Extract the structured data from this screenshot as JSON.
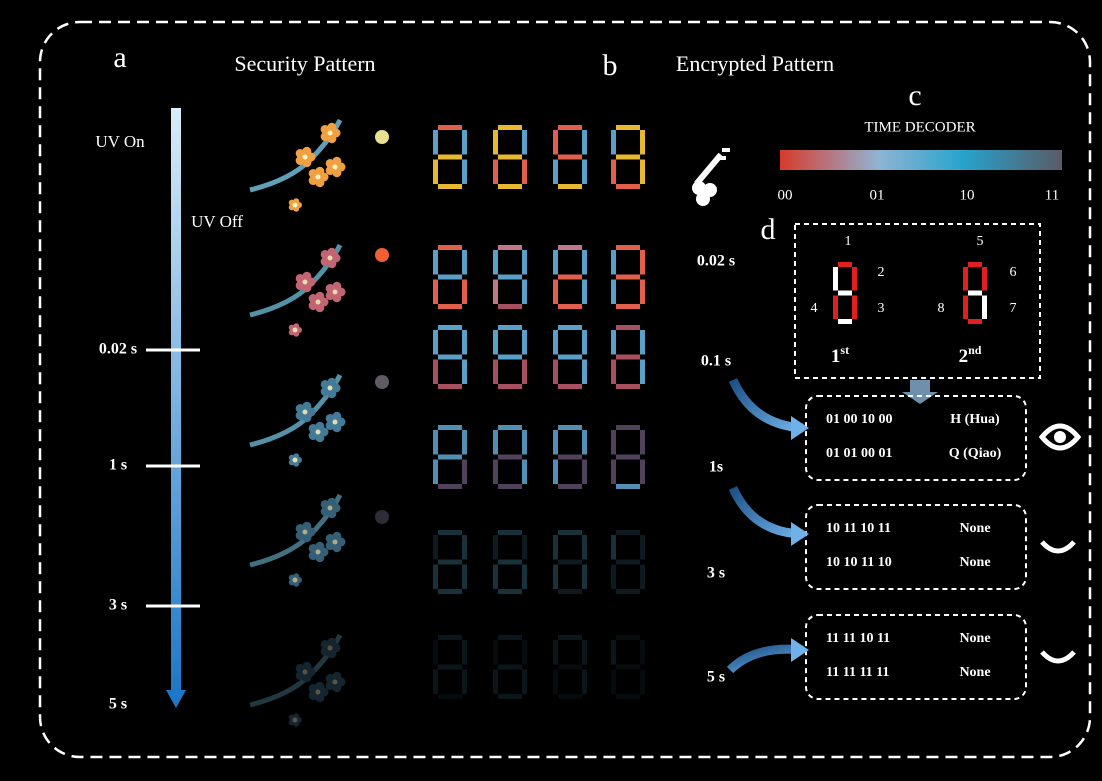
{
  "panels": {
    "a": "a",
    "b": "b",
    "c": "c",
    "d": "d"
  },
  "security_pattern": {
    "title": "Security Pattern",
    "uv_on": "UV On",
    "uv_off": "UV Off",
    "times": [
      "0.02 s",
      "1 s",
      "3 s",
      "5 s"
    ]
  },
  "encrypted_pattern": {
    "title": "Encrypted Pattern",
    "times": [
      "0.02 s",
      "0.1 s",
      "1s",
      "3 s",
      "5 s"
    ]
  },
  "time_decoder": {
    "title": "TIME DECODER",
    "labels": [
      "00",
      "01",
      "10",
      "11"
    ]
  },
  "decoder_key": {
    "segment_numbers": [
      "1",
      "2",
      "3",
      "4",
      "5",
      "6",
      "7",
      "8"
    ],
    "digits": [
      {
        "base": "1",
        "sup": "st"
      },
      {
        "base": "2",
        "sup": "nd"
      }
    ]
  },
  "results": [
    {
      "rows": [
        [
          "01 00 10 00",
          "H (Hua)"
        ],
        [
          "01 01 00 01",
          "Q (Qiao)"
        ]
      ]
    },
    {
      "rows": [
        [
          "10 11 10 11",
          "None"
        ],
        [
          "10 10 11 10",
          "None"
        ]
      ]
    },
    {
      "rows": [
        [
          "11 11 10 11",
          "None"
        ],
        [
          "11 11 11 11",
          "None"
        ]
      ]
    }
  ]
}
